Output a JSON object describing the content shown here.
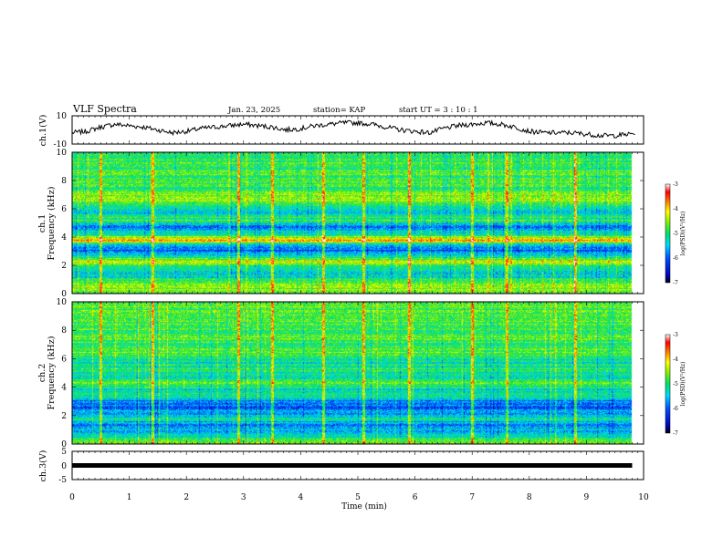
{
  "header": {
    "title": "VLF Spectra",
    "date": "Jan. 23, 2025",
    "station": "station= KAP",
    "start_ut": "start  UT =   3 : 10 : 1"
  },
  "chart_data": [
    {
      "type": "line",
      "panel": "ch1-waveform",
      "ylabel": "ch.1(V)",
      "ylim": [
        -10,
        10
      ],
      "yticks": [
        "10",
        "-10"
      ],
      "xlim": [
        0,
        10
      ],
      "line_color": "#000000",
      "x_min": [
        0,
        0.25,
        0.5,
        0.75,
        1,
        1.25,
        1.5,
        1.75,
        2,
        2.25,
        2.5,
        2.75,
        3,
        3.25,
        3.5,
        3.75,
        4,
        4.25,
        4.5,
        4.75,
        5,
        5.25,
        5.5,
        5.75,
        6,
        6.25,
        6.5,
        6.75,
        7,
        7.25,
        7.5,
        7.75,
        8,
        8.25,
        8.5,
        8.75,
        9,
        9.25,
        9.5,
        9.75
      ],
      "values": [
        -2,
        -1,
        2,
        4,
        3,
        2,
        0,
        -2,
        -1,
        1,
        2,
        3,
        4,
        3,
        2,
        0,
        1,
        3,
        4,
        5,
        5,
        4,
        2,
        0,
        -1,
        -2,
        1,
        3,
        4,
        5,
        4,
        2,
        -1,
        -2,
        -2,
        -2,
        -3,
        -4,
        -4,
        -3
      ]
    },
    {
      "type": "heatmap",
      "panel": "ch1-spectrogram",
      "ylabel": "ch.1",
      "ylabel2": "Frequency (kHz)",
      "ylim": [
        0,
        10
      ],
      "yticks": [
        "0",
        "2",
        "4",
        "6",
        "8",
        "10"
      ],
      "xlim": [
        0,
        10
      ],
      "colorbar": {
        "label": "log(PSD)(V²/Hz)",
        "ticks": [
          "-3",
          "-4",
          "-5",
          "-6",
          "-7"
        ],
        "range": [
          -7,
          -3
        ]
      },
      "band_profile": [
        {
          "f": 0.2,
          "v": -4.7
        },
        {
          "f": 0.5,
          "v": -4.3
        },
        {
          "f": 0.8,
          "v": -4.6
        },
        {
          "f": 1.1,
          "v": -5.2
        },
        {
          "f": 1.5,
          "v": -5.4
        },
        {
          "f": 1.9,
          "v": -5.0
        },
        {
          "f": 2.3,
          "v": -4.2
        },
        {
          "f": 2.7,
          "v": -5.5
        },
        {
          "f": 3.1,
          "v": -6.0
        },
        {
          "f": 3.4,
          "v": -5.6
        },
        {
          "f": 3.8,
          "v": -3.8
        },
        {
          "f": 4.2,
          "v": -5.2
        },
        {
          "f": 4.7,
          "v": -5.8
        },
        {
          "f": 5.2,
          "v": -4.9
        },
        {
          "f": 5.7,
          "v": -5.3
        },
        {
          "f": 6.3,
          "v": -5.0
        },
        {
          "f": 6.8,
          "v": -4.4
        },
        {
          "f": 7.3,
          "v": -4.9
        },
        {
          "f": 8.0,
          "v": -4.9
        },
        {
          "f": 8.6,
          "v": -4.8
        },
        {
          "f": 9.2,
          "v": -4.9
        },
        {
          "f": 9.8,
          "v": -4.9
        }
      ],
      "impulse_x_min": [
        0.5,
        1.4,
        2.9,
        3.5,
        4.4,
        5.1,
        5.9,
        7.0,
        7.6,
        8.8
      ]
    },
    {
      "type": "heatmap",
      "panel": "ch2-spectrogram",
      "ylabel": "ch.2",
      "ylabel2": "Frequency (kHz)",
      "ylim": [
        0,
        10
      ],
      "yticks": [
        "0",
        "2",
        "4",
        "6",
        "8",
        "10"
      ],
      "xlim": [
        0,
        10
      ],
      "colorbar": {
        "label": "log(PSD)(V²/Hz)",
        "ticks": [
          "-3",
          "-4",
          "-5",
          "-6",
          "-7"
        ],
        "range": [
          -7,
          -3
        ]
      },
      "band_profile": [
        {
          "f": 0.2,
          "v": -4.6
        },
        {
          "f": 0.6,
          "v": -5.3
        },
        {
          "f": 1.0,
          "v": -5.6
        },
        {
          "f": 1.4,
          "v": -5.8
        },
        {
          "f": 1.8,
          "v": -5.2
        },
        {
          "f": 2.2,
          "v": -5.7
        },
        {
          "f": 2.6,
          "v": -6.0
        },
        {
          "f": 3.0,
          "v": -5.9
        },
        {
          "f": 3.4,
          "v": -5.0
        },
        {
          "f": 3.8,
          "v": -5.3
        },
        {
          "f": 4.3,
          "v": -4.8
        },
        {
          "f": 4.8,
          "v": -5.4
        },
        {
          "f": 5.3,
          "v": -5.0
        },
        {
          "f": 5.8,
          "v": -5.2
        },
        {
          "f": 6.3,
          "v": -4.7
        },
        {
          "f": 6.8,
          "v": -5.0
        },
        {
          "f": 7.4,
          "v": -4.8
        },
        {
          "f": 8.0,
          "v": -4.9
        },
        {
          "f": 8.6,
          "v": -4.8
        },
        {
          "f": 9.2,
          "v": -4.8
        },
        {
          "f": 9.8,
          "v": -4.8
        }
      ],
      "impulse_x_min": [
        0.5,
        1.4,
        2.9,
        3.5,
        4.4,
        5.1,
        5.9,
        7.0,
        7.6,
        8.8
      ]
    },
    {
      "type": "line",
      "panel": "ch3-waveform",
      "ylabel": "ch.3(V)",
      "ylim": [
        -5,
        5
      ],
      "yticks": [
        "5",
        "0",
        "-5"
      ],
      "xlim": [
        0,
        9.8
      ],
      "line_color": "#000000",
      "constant_value": 0
    }
  ],
  "xaxis": {
    "label": "Time  (min)",
    "range": [
      0,
      10
    ],
    "ticks": [
      "0",
      "1",
      "2",
      "3",
      "4",
      "5",
      "6",
      "7",
      "8",
      "9",
      "10"
    ]
  }
}
